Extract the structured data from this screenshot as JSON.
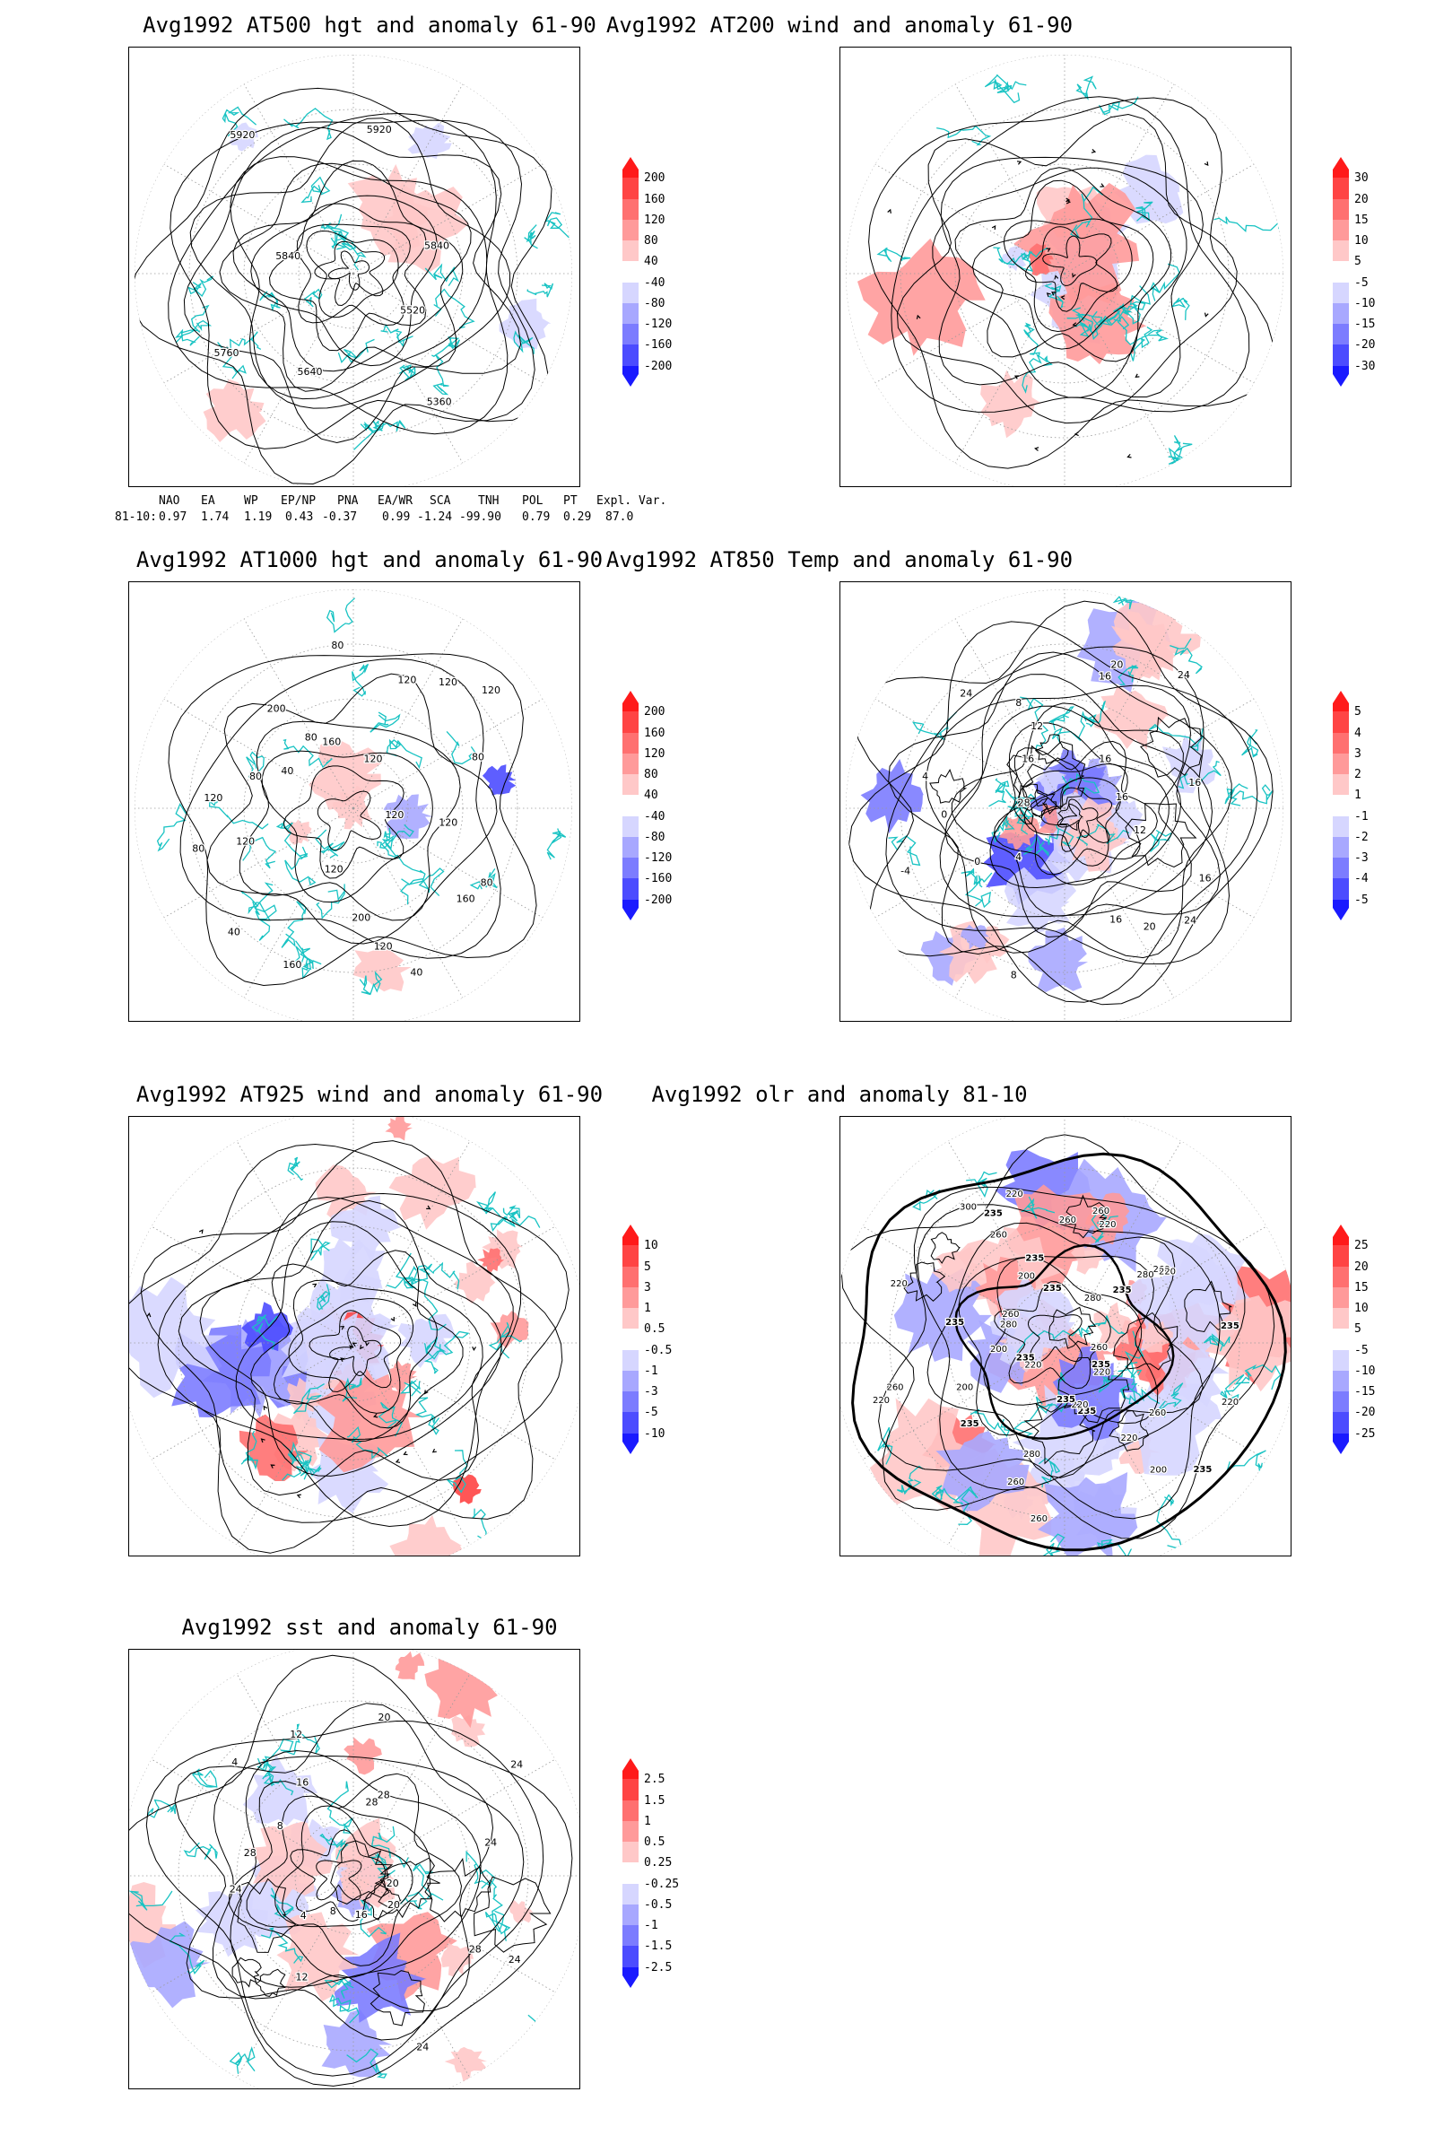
{
  "panels": [
    {
      "id": "p1",
      "title": "Avg1992 AT500 hgt and anomaly 61-90",
      "contour_labels": [
        "5520",
        "5360",
        "5640",
        "5760",
        "5840",
        "5920",
        "5920",
        "5840"
      ],
      "colorbar": [
        "200",
        "160",
        "120",
        "80",
        "40",
        "-40",
        "-80",
        "-120",
        "-160",
        "-200"
      ]
    },
    {
      "id": "p2",
      "title": "Avg1992 AT200 wind and anomaly 61-90",
      "contour_labels": [],
      "colorbar": [
        "30",
        "20",
        "15",
        "10",
        "5",
        "-5",
        "-10",
        "-15",
        "-20",
        "-30"
      ]
    },
    {
      "id": "p3",
      "title": "Avg1992 AT1000 hgt and anomaly 61-90",
      "contour_labels": [
        "120",
        "80",
        "160",
        "40",
        "200",
        "120",
        "160",
        "120",
        "40",
        "80",
        "120",
        "80",
        "120",
        "40",
        "80",
        "200",
        "160",
        "80",
        "120",
        "120",
        "120",
        "120",
        "80",
        "120"
      ],
      "colorbar": [
        "200",
        "160",
        "120",
        "80",
        "40",
        "-40",
        "-80",
        "-120",
        "-160",
        "-200"
      ]
    },
    {
      "id": "p4",
      "title": "Avg1992 AT850 Temp and anomaly 61-90",
      "contour_labels": [
        "16",
        "12",
        "24",
        "20",
        "16",
        "8",
        "4",
        "0",
        "-4",
        "0",
        "4",
        "28",
        "24",
        "16",
        "8",
        "12",
        "20",
        "16",
        "24",
        "16",
        "16",
        "16"
      ],
      "colorbar": [
        "5",
        "4",
        "3",
        "2",
        "1",
        "-1",
        "-2",
        "-3",
        "-4",
        "-5"
      ]
    },
    {
      "id": "p5",
      "title": "Avg1992 AT925 wind and anomaly 61-90",
      "contour_labels": [],
      "colorbar": [
        "10",
        "5",
        "3",
        "1",
        "0.5",
        "-0.5",
        "-1",
        "-3",
        "-5",
        "-10"
      ]
    },
    {
      "id": "p6",
      "title": "Avg1992 olr and anomaly 81-10",
      "contour_labels": [
        "235",
        "235",
        "220",
        "260",
        "220",
        "200",
        "235",
        "220",
        "260",
        "280",
        "235",
        "260",
        "235",
        "220",
        "200",
        "260",
        "235",
        "220",
        "235",
        "200",
        "220",
        "260",
        "280",
        "300",
        "260",
        "235",
        "235",
        "200",
        "220",
        "235",
        "260",
        "280",
        "260",
        "220",
        "235",
        "260",
        "280",
        "220",
        "235",
        "260",
        "220"
      ],
      "colorbar": [
        "25",
        "20",
        "15",
        "10",
        "5",
        "-5",
        "-10",
        "-15",
        "-20",
        "-25"
      ]
    },
    {
      "id": "p7",
      "title": "Avg1992 sst and anomaly 61-90",
      "contour_labels": [
        "28",
        "24",
        "20",
        "24",
        "16",
        "12",
        "8",
        "4",
        "24",
        "28",
        "8",
        "4",
        "12",
        "16",
        "20",
        "28",
        "28",
        "24",
        "24",
        "20"
      ],
      "colorbar": [
        "2.5",
        "1.5",
        "1",
        "0.5",
        "0.25",
        "-0.25",
        "-0.5",
        "-1",
        "-1.5",
        "-2.5"
      ]
    }
  ],
  "teleconnection": {
    "headers": [
      "NAO",
      "EA",
      "WP",
      "EP/NP",
      "PNA",
      "EA/WR",
      "SCA",
      "TNH",
      "POL",
      "PT",
      "Expl. Var."
    ],
    "row_label": "81-10:",
    "values": [
      "0.97",
      "1.74",
      "1.19",
      "0.43",
      "-0.37",
      "0.99",
      "-1.24",
      "-99.90",
      "0.79",
      "0.29",
      "87.0"
    ]
  },
  "colors": {
    "coast": "#19c3c3",
    "contour": "#000000",
    "grid": "#9a9a9a",
    "warm": [
      "#ff1a1a",
      "#ff4444",
      "#ff7070",
      "#ff9a9a",
      "#ffc8c8"
    ],
    "cold": [
      "#d6d6ff",
      "#a8a8ff",
      "#7c7cff",
      "#4c4cff",
      "#1a1aff"
    ]
  }
}
